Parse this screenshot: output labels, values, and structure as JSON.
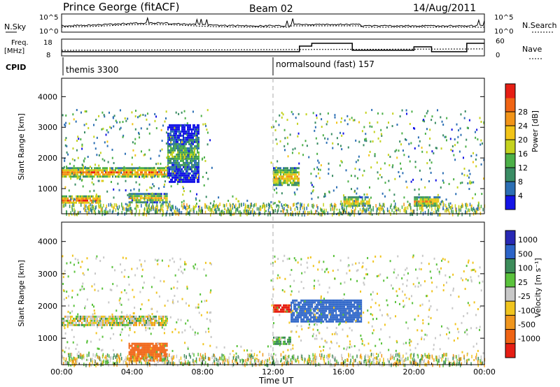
{
  "header": {
    "station": "Prince George (fitACF)",
    "beam": "Beam 02",
    "date": "14/Aug/2011"
  },
  "noise_panel": {
    "left_label": "N.Sky",
    "right_label": "N.Search",
    "left_ticks": [
      "10^5",
      "10^0"
    ],
    "right_ticks": [
      "10^5",
      "10^0"
    ]
  },
  "freq_panel": {
    "left_label_1": "Freq.",
    "left_label_2": "[MHz]",
    "left_ticks": [
      "18",
      "8"
    ],
    "right_label": "Nave",
    "right_ticks": [
      "60",
      "0"
    ]
  },
  "cpid": {
    "label": "CPID",
    "segments": [
      {
        "name": "themis 3300",
        "start_hour": 0
      },
      {
        "name": "normalsound (fast) 157",
        "start_hour": 12
      }
    ]
  },
  "power_panel": {
    "ylabel": "Slant Range [km]",
    "yticks": [
      "1000",
      "2000",
      "3000",
      "4000"
    ],
    "colorbar_label": "Power [dB]",
    "colorbar_ticks": [
      "4",
      "8",
      "12",
      "16",
      "20",
      "24",
      "28"
    ],
    "colors": [
      "#1414e6",
      "#2c6fb4",
      "#3a8c64",
      "#4cb048",
      "#c4d21e",
      "#f2c418",
      "#f29418",
      "#f06414",
      "#e61e14"
    ]
  },
  "velocity_panel": {
    "ylabel": "Slant Range [km]",
    "yticks": [
      "1000",
      "2000",
      "3000",
      "4000"
    ],
    "colorbar_label": "Velocity [m s⁻¹]",
    "colorbar_ticks": [
      "1000",
      "500",
      "100",
      "25",
      "-25",
      "-100",
      "-500",
      "-1000"
    ],
    "colors": [
      "#2828b4",
      "#2c64c8",
      "#3c8c5a",
      "#5ac23c",
      "#c8c8c8",
      "#f0c41e",
      "#f0961e",
      "#f06414",
      "#e61e14"
    ]
  },
  "xaxis": {
    "label": "Time UT",
    "ticks": [
      "00:00",
      "04:00",
      "08:00",
      "12:00",
      "16:00",
      "20:00",
      "00:00"
    ]
  },
  "chart_data": {
    "type": "heatmap",
    "x_range_hours": [
      0,
      24
    ],
    "y_range_km": [
      180,
      4600
    ],
    "power_regions": [
      {
        "t0": 0.0,
        "t1": 6.0,
        "r0": 1400,
        "r1": 1700,
        "level": 24
      },
      {
        "t0": 0.0,
        "t1": 2.2,
        "r0": 520,
        "r1": 780,
        "level": 26
      },
      {
        "t0": 3.8,
        "t1": 6.0,
        "r0": 580,
        "r1": 860,
        "level": 20
      },
      {
        "t0": 6.0,
        "t1": 7.8,
        "r0": 1200,
        "r1": 3100,
        "level": 12
      },
      {
        "t0": 12.0,
        "t1": 13.5,
        "r0": 1100,
        "r1": 1700,
        "level": 20
      },
      {
        "t0": 16.0,
        "t1": 17.5,
        "r0": 450,
        "r1": 750,
        "level": 20
      },
      {
        "t0": 20.0,
        "t1": 21.5,
        "r0": 450,
        "r1": 750,
        "level": 22
      }
    ],
    "velocity_regions": [
      {
        "t0": 0.0,
        "t1": 6.0,
        "r0": 1400,
        "r1": 1700,
        "v": 0
      },
      {
        "t0": 3.8,
        "t1": 6.0,
        "r0": 300,
        "r1": 860,
        "v": -500
      },
      {
        "t0": 12.0,
        "t1": 13.0,
        "r0": 1800,
        "r1": 2050,
        "v": -800
      },
      {
        "t0": 13.0,
        "t1": 17.0,
        "r0": 1500,
        "r1": 2200,
        "v": 600
      },
      {
        "t0": 12.0,
        "t1": 13.0,
        "r0": 850,
        "r1": 1050,
        "v": 80
      }
    ]
  }
}
